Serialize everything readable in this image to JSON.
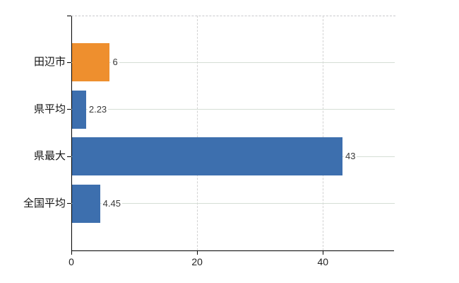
{
  "chart_data": {
    "type": "bar",
    "orientation": "horizontal",
    "title": "",
    "xlabel": "",
    "ylabel": "",
    "categories": [
      "田辺市",
      "県平均",
      "県最大",
      "全国平均"
    ],
    "values": [
      6,
      2.23,
      43,
      4.45
    ],
    "value_labels": [
      "6",
      "2.23",
      "43",
      "4.45"
    ],
    "series": [
      {
        "name": "value",
        "values": [
          6,
          2.23,
          43,
          4.45
        ]
      }
    ],
    "bar_colors": [
      "#ee8f2e",
      "#3d6fae",
      "#3d6fae",
      "#3d6fae"
    ],
    "xlim": [
      0,
      51.2
    ],
    "x_ticks": [
      {
        "value": 0,
        "label": "0"
      },
      {
        "value": 20,
        "label": "20"
      },
      {
        "value": 40,
        "label": "40"
      }
    ],
    "legend": "none",
    "grid": {
      "horizontal_category_lines": true,
      "vertical_tick_lines": true,
      "top_border": "dashed"
    },
    "colors": {
      "background": "#ffffff",
      "axis": "#000000",
      "grid_horizontal": "#d5ded5",
      "grid_vertical": "#d2d2d2",
      "top_border": "#c9c9cd",
      "value_label_text": "#3a3a3a",
      "category_label_text": "#141414",
      "tick_label_text": "#222222",
      "bar_orange": "#ee8f2e",
      "bar_blue": "#3d6fae"
    }
  }
}
